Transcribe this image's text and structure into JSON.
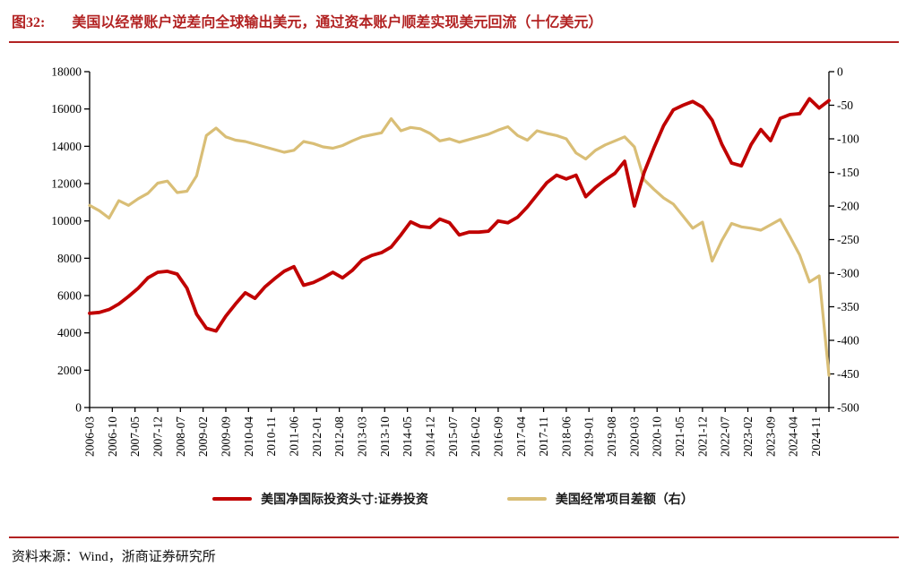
{
  "header": {
    "figure_label": "图32:",
    "title": "美国以经常账户逆差向全球输出美元，通过资本账户顺差实现美元回流（十亿美元）"
  },
  "footer": {
    "source": "资料来源：Wind，浙商证券研究所"
  },
  "colors": {
    "title_red": "#B22222",
    "rule_red": "#B22222",
    "series_red": "#C00000",
    "series_tan": "#D9BE76",
    "axis_black": "#000000"
  },
  "chart_data": {
    "type": "line",
    "title": "美国以经常账户逆差向全球输出美元，通过资本账户顺差实现美元回流（十亿美元）",
    "grid": "off",
    "legend_position": "bottom-center",
    "x_tick_labels": [
      "2006-03",
      "2006-10",
      "2007-05",
      "2007-12",
      "2008-07",
      "2009-02",
      "2009-09",
      "2010-04",
      "2010-11",
      "2011-06",
      "2012-01",
      "2012-08",
      "2013-03",
      "2013-10",
      "2014-05",
      "2014-12",
      "2015-07",
      "2016-02",
      "2016-09",
      "2017-04",
      "2017-11",
      "2018-06",
      "2019-01",
      "2019-08",
      "2020-03",
      "2020-10",
      "2021-05",
      "2021-12",
      "2022-07",
      "2023-02",
      "2023-09",
      "2024-04",
      "2024-11"
    ],
    "x_tick_interval_months": 7,
    "x_start": "2006-03",
    "x_end": "2025-03",
    "point_interval_months": 3,
    "total_span_months": 228,
    "left_axis": {
      "min": 0,
      "max": 18000,
      "tick_step": 2000,
      "tick_labels": [
        "0",
        "2000",
        "4000",
        "6000",
        "8000",
        "10000",
        "12000",
        "14000",
        "16000",
        "18000"
      ]
    },
    "right_axis": {
      "min": -500,
      "max": 0,
      "tick_step": 50,
      "tick_labels": [
        "0",
        "-50",
        "-100",
        "-150",
        "-200",
        "-250",
        "-300",
        "-350",
        "-400",
        "-450",
        "-500"
      ]
    },
    "series": [
      {
        "name": "美国净国际投资头寸:证券投资",
        "axis": "left",
        "color": "#C00000",
        "stroke_width": 3.8,
        "start": "2006-03",
        "values": [
          5050,
          5100,
          5250,
          5550,
          5950,
          6400,
          6950,
          7250,
          7300,
          7150,
          6400,
          5000,
          4250,
          4100,
          4900,
          5550,
          6150,
          5850,
          6450,
          6900,
          7300,
          7550,
          6550,
          6700,
          6950,
          7250,
          6950,
          7350,
          7900,
          8150,
          8300,
          8600,
          9250,
          9950,
          9700,
          9650,
          10100,
          9900,
          9250,
          9400,
          9400,
          9450,
          10000,
          9900,
          10200,
          10750,
          11400,
          12050,
          12450,
          12250,
          12450,
          11300,
          11800,
          12200,
          12550,
          13200,
          10800,
          12600,
          13900,
          15100,
          15950,
          16200,
          16400,
          16100,
          15400,
          14100,
          13100,
          12950,
          14100,
          14900,
          14300,
          15500,
          15700,
          15750,
          16550,
          16050,
          16450
        ]
      },
      {
        "name": "美国经常项目差额（右）",
        "axis": "right",
        "color": "#D9BE76",
        "stroke_width": 3.2,
        "start": "2006-03",
        "values": [
          -199,
          -207,
          -218,
          -192,
          -199,
          -189,
          -181,
          -166,
          -163,
          -180,
          -178,
          -155,
          -95,
          -84,
          -97,
          -102,
          -104,
          -108,
          -112,
          -116,
          -120,
          -117,
          -104,
          -107,
          -112,
          -114,
          -110,
          -103,
          -97,
          -94,
          -91,
          -70,
          -88,
          -83,
          -85,
          -92,
          -103,
          -100,
          -105,
          -101,
          -97,
          -93,
          -87,
          -82,
          -95,
          -102,
          -88,
          -92,
          -95,
          -100,
          -121,
          -130,
          -117,
          -109,
          -103,
          -97,
          -112,
          -161,
          -175,
          -188,
          -197,
          -215,
          -233,
          -224,
          -282,
          -251,
          -226,
          -231,
          -233,
          -236,
          -228,
          -220,
          -246,
          -273,
          -313,
          -304,
          -452
        ]
      }
    ]
  }
}
